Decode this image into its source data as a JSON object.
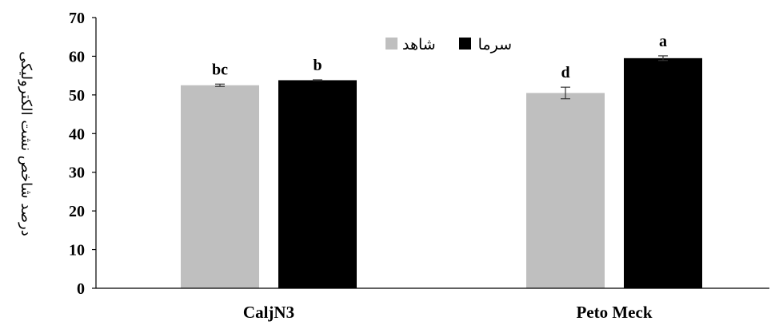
{
  "chart_data": {
    "type": "bar",
    "categories": [
      "CaljN3",
      "Peto Meck"
    ],
    "series": [
      {
        "name": "شاهد",
        "color": "#bfbfbf",
        "values": [
          52.5,
          50.5
        ],
        "errors": [
          0.3,
          1.5
        ],
        "labels": [
          "bc",
          "d"
        ]
      },
      {
        "name": "سرما",
        "color": "#000000",
        "values": [
          53.8,
          59.5
        ],
        "errors": [
          0.1,
          0.6
        ],
        "labels": [
          "b",
          "a"
        ]
      }
    ],
    "ylabel": "درصد شاخص نشت الکترولیکی",
    "xlabel": "",
    "ylim": [
      0,
      70
    ],
    "yticks": [
      0,
      10,
      20,
      30,
      40,
      50,
      60,
      70
    ],
    "grid": false,
    "legend_position": "top-center"
  }
}
